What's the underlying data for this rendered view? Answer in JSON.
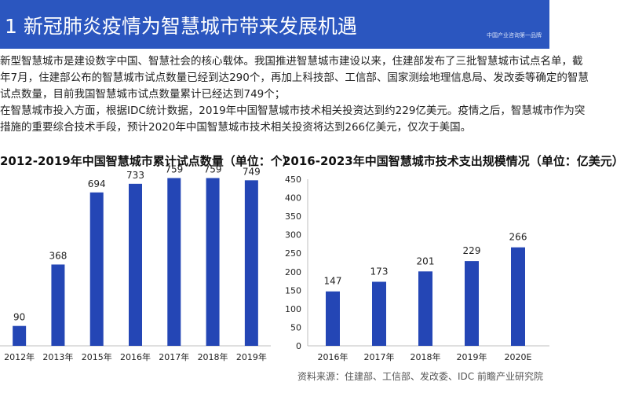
{
  "header": {
    "title": "1 新冠肺炎疫情为智慧城市带来发展机遇",
    "tag": "中国产业咨询第一品牌"
  },
  "intro": {
    "lines": [
      "新型智慧城市是建设数字中国、智慧社会的核心载体。我国推进智慧城市建设以来，住建部发布了三批智慧城市试点名单，截",
      "年7月，住建部公布的智慧城市试点数量已经到达290个，再加上科技部、工信部、国家测绘地理信息局、发改委等确定的智慧",
      "试点数量，目前我国智慧城市试点数量累计已经达到749个；",
      "在智慧城市投入方面，根据IDC统计数据，2019年中国智慧城市技术相关投资达到约229亿美元。疫情之后，智慧城市作为突",
      "措施的重要综合技术手段，预计2020年中国智慧城市技术相关投资将达到266亿美元，仅次于美国。"
    ]
  },
  "colors": {
    "header": "#2b56bf",
    "bar": "#2446b5",
    "axis": "#bfbfbf"
  },
  "chart_data": [
    {
      "type": "bar",
      "title": "2012-2019年中国智慧城市累计试点数量（单位：个）",
      "categories": [
        "2012年",
        "2013年",
        "2015年",
        "2016年",
        "2017年",
        "2018年",
        "2019年"
      ],
      "values": [
        90,
        368,
        694,
        733,
        759,
        759,
        749
      ],
      "data_labels": [
        "90",
        "368",
        "694",
        "733",
        "759",
        "759",
        "749"
      ],
      "ylim": [
        0,
        800
      ],
      "grid": false
    },
    {
      "type": "bar",
      "title": "2016-2023年中国智慧城市技术支出规模情况（单位：亿美元）",
      "categories": [
        "2016年",
        "2017年",
        "2018年",
        "2019年",
        "2020E"
      ],
      "values": [
        147,
        173,
        201,
        229,
        266
      ],
      "data_labels": [
        "147",
        "173",
        "201",
        "229",
        "266"
      ],
      "yticks": [
        "0",
        "50",
        "100",
        "150",
        "200",
        "250",
        "300",
        "350",
        "400",
        "450"
      ],
      "ylim": [
        0,
        450
      ],
      "grid": false
    }
  ],
  "footer": {
    "source": "资料来源：住建部、工信部、发改委、IDC 前瞻产业研究院"
  }
}
